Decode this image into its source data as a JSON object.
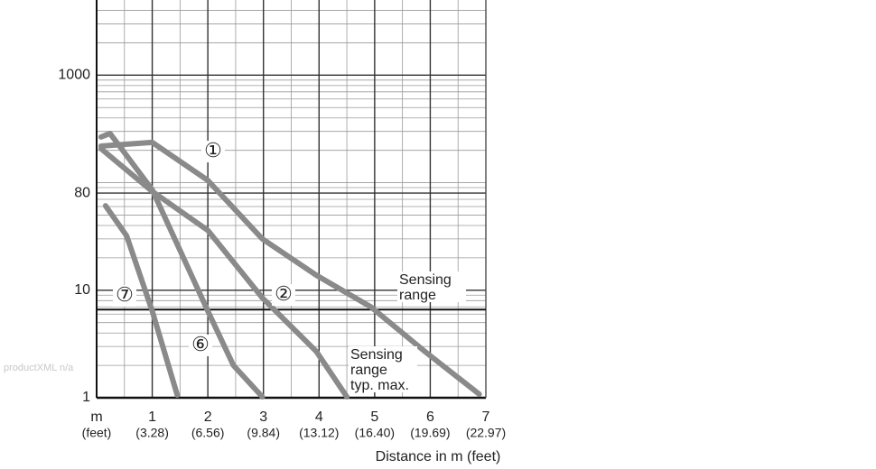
{
  "chart_data": {
    "type": "line",
    "log_y": true,
    "grid": true,
    "minor_grid": true,
    "color": "#8a8a8a",
    "xlabel": "Distance in m (feet)",
    "xlim": [
      0,
      7
    ],
    "xticks": [
      {
        "value": 0,
        "label": "m"
      },
      1,
      2,
      3,
      4,
      5,
      6,
      7
    ],
    "xtick_sublabels": [
      "(feet)",
      "(3.28)",
      "(6.56)",
      "(9.84)",
      "(13.12)",
      "(16.40)",
      "(19.69)",
      "(22.97)"
    ],
    "ylim": [
      1,
      5000
    ],
    "yticks": [
      1,
      10,
      80,
      1000
    ],
    "series": [
      {
        "name": "①",
        "color": "#8a8a8a",
        "x": [
          0.08,
          0.54,
          1.0,
          2.0,
          2.98,
          3.95,
          4.93,
          5.9,
          6.88
        ],
        "values": [
          219,
          228,
          237,
          105,
          30,
          13.8,
          7.0,
          2.7,
          1.08
        ]
      },
      {
        "name": "②",
        "color": "#8a8a8a",
        "x": [
          0.08,
          1.0,
          2.0,
          2.98,
          3.95,
          4.5
        ],
        "values": [
          207,
          83,
          36,
          8.5,
          2.7,
          1.02
        ]
      },
      {
        "name": "⑥",
        "color": "#8a8a8a",
        "x": [
          0.08,
          0.24,
          1.0,
          2.0,
          2.46,
          2.98
        ],
        "values": [
          266,
          287,
          86,
          6.4,
          2.0,
          1.02
        ]
      },
      {
        "name": "⑦",
        "color": "#8a8a8a",
        "x": [
          0.16,
          0.54,
          1.0,
          1.45
        ],
        "values": [
          61,
          32,
          6.4,
          1.06
        ]
      }
    ],
    "sensing_range_line": 6.6,
    "annotations": [
      {
        "lines": [
          "Sensing",
          "range"
        ]
      },
      {
        "lines": [
          "Sensing",
          "range",
          "typ. max."
        ]
      }
    ]
  },
  "watermark": "productXML n/a"
}
